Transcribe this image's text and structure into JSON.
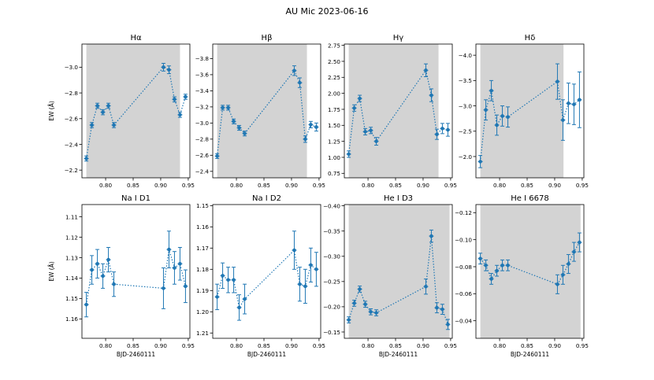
{
  "figure": {
    "suptitle": "AU Mic 2023-06-16"
  },
  "colors": {
    "series": "#1f77b4",
    "shade": "#d3d3d3",
    "axis": "#000000"
  },
  "x_times": [
    0.765,
    0.775,
    0.785,
    0.795,
    0.805,
    0.815,
    0.905,
    0.915,
    0.925,
    0.935,
    0.945
  ],
  "chart_data": [
    {
      "type": "scatter",
      "title": "Hα",
      "xlabel": "",
      "ylabel": "EW (Å)",
      "xlim": [
        0.757,
        0.953
      ],
      "ylim": [
        -3.18,
        -2.14
      ],
      "y_inverted": true,
      "shade": [
        0.765,
        0.935
      ],
      "yticks": [
        -3.0,
        -2.8,
        -2.6,
        -2.4,
        -2.2
      ],
      "yticklabels": [
        "−3.0",
        "−2.8",
        "−2.6",
        "−2.4",
        "−2.2"
      ],
      "xticks": [
        0.8,
        0.85,
        0.9,
        0.95
      ],
      "xticklabels": [
        "0.80",
        "0.85",
        "0.90",
        "0.95"
      ],
      "x": [
        0.765,
        0.775,
        0.785,
        0.795,
        0.805,
        0.815,
        0.905,
        0.915,
        0.925,
        0.935,
        0.945
      ],
      "y": [
        -2.29,
        -2.55,
        -2.7,
        -2.65,
        -2.7,
        -2.55,
        -3.0,
        -2.98,
        -2.75,
        -2.63,
        -2.77
      ],
      "yerr": [
        0.02,
        0.02,
        0.02,
        0.02,
        0.02,
        0.02,
        0.03,
        0.03,
        0.02,
        0.02,
        0.02
      ]
    },
    {
      "type": "scatter",
      "title": "Hβ",
      "xlabel": "",
      "ylabel": "",
      "xlim": [
        0.757,
        0.953
      ],
      "ylim": [
        -3.98,
        -2.32
      ],
      "y_inverted": true,
      "shade": [
        0.765,
        0.928
      ],
      "yticks": [
        -3.8,
        -3.6,
        -3.4,
        -3.2,
        -3.0,
        -2.8,
        -2.6,
        -2.4
      ],
      "yticklabels": [
        "−3.8",
        "−3.6",
        "−3.4",
        "−3.2",
        "−3.0",
        "−2.8",
        "−2.6",
        "−2.4"
      ],
      "xticks": [
        0.8,
        0.85,
        0.9,
        0.95
      ],
      "xticklabels": [
        "0.80",
        "0.85",
        "0.90",
        "0.95"
      ],
      "x": [
        0.765,
        0.775,
        0.785,
        0.795,
        0.805,
        0.815,
        0.905,
        0.915,
        0.925,
        0.935,
        0.945
      ],
      "y": [
        -2.59,
        -3.19,
        -3.19,
        -3.02,
        -2.94,
        -2.87,
        -3.65,
        -3.5,
        -2.8,
        -2.98,
        -2.95
      ],
      "yerr": [
        0.03,
        0.03,
        0.03,
        0.03,
        0.03,
        0.03,
        0.06,
        0.06,
        0.04,
        0.04,
        0.05
      ]
    },
    {
      "type": "scatter",
      "title": "Hγ",
      "xlabel": "",
      "ylabel": "",
      "xlim": [
        0.757,
        0.953
      ],
      "ylim": [
        0.68,
        2.77
      ],
      "y_inverted": false,
      "shade": [
        0.765,
        0.928
      ],
      "yticks": [
        0.75,
        1.0,
        1.25,
        1.5,
        1.75,
        2.0,
        2.25,
        2.5,
        2.75
      ],
      "yticklabels": [
        "0.75",
        "1.00",
        "1.25",
        "1.50",
        "1.75",
        "2.00",
        "2.25",
        "2.50",
        "2.75"
      ],
      "xticks": [
        0.8,
        0.85,
        0.9,
        0.95
      ],
      "xticklabels": [
        "0.80",
        "0.85",
        "0.90",
        "0.95"
      ],
      "x": [
        0.765,
        0.775,
        0.785,
        0.795,
        0.805,
        0.815,
        0.905,
        0.915,
        0.925,
        0.935,
        0.945
      ],
      "y": [
        1.05,
        1.77,
        1.92,
        1.4,
        1.42,
        1.25,
        2.36,
        1.97,
        1.36,
        1.45,
        1.43
      ],
      "yerr": [
        0.05,
        0.05,
        0.05,
        0.05,
        0.05,
        0.06,
        0.1,
        0.1,
        0.08,
        0.08,
        0.1
      ]
    },
    {
      "type": "scatter",
      "title": "Hδ",
      "xlabel": "",
      "ylabel": "",
      "xlim": [
        0.757,
        0.953
      ],
      "ylim": [
        -4.22,
        -1.58
      ],
      "y_inverted": true,
      "shade": [
        0.765,
        0.916
      ],
      "yticks": [
        -4.0,
        -3.5,
        -3.0,
        -2.5,
        -2.0
      ],
      "yticklabels": [
        "−4.0",
        "−3.5",
        "−3.0",
        "−2.5",
        "−2.0"
      ],
      "xticks": [
        0.8,
        0.85,
        0.9,
        0.95
      ],
      "xticklabels": [
        "0.80",
        "0.85",
        "0.90",
        "0.95"
      ],
      "x": [
        0.765,
        0.775,
        0.785,
        0.795,
        0.805,
        0.815,
        0.905,
        0.915,
        0.925,
        0.935,
        0.945
      ],
      "y": [
        -1.9,
        -2.92,
        -3.3,
        -2.62,
        -2.8,
        -2.78,
        -3.48,
        -2.72,
        -3.05,
        -3.03,
        -3.12
      ],
      "yerr": [
        0.12,
        0.2,
        0.2,
        0.2,
        0.2,
        0.2,
        0.35,
        0.4,
        0.4,
        0.4,
        0.55
      ]
    },
    {
      "type": "scatter",
      "title": "Na I D1",
      "xlabel": "BJD-2460111",
      "ylabel": "EW (Å)",
      "xlim": [
        0.757,
        0.953
      ],
      "ylim": [
        1.104,
        1.1695
      ],
      "y_inverted": true,
      "shade": null,
      "yticks": [
        1.11,
        1.12,
        1.13,
        1.14,
        1.15,
        1.16
      ],
      "yticklabels": [
        "1.11",
        "1.12",
        "1.13",
        "1.14",
        "1.15",
        "1.16"
      ],
      "xticks": [
        0.8,
        0.85,
        0.9,
        0.95
      ],
      "xticklabels": [
        "0.80",
        "0.85",
        "0.90",
        "0.95"
      ],
      "x": [
        0.765,
        0.775,
        0.785,
        0.795,
        0.805,
        0.815,
        0.905,
        0.915,
        0.925,
        0.935,
        0.945
      ],
      "y": [
        1.153,
        1.136,
        1.133,
        1.139,
        1.131,
        1.143,
        1.145,
        1.126,
        1.135,
        1.133,
        1.144
      ],
      "yerr": [
        0.006,
        0.007,
        0.007,
        0.006,
        0.006,
        0.006,
        0.01,
        0.009,
        0.008,
        0.008,
        0.008
      ]
    },
    {
      "type": "scatter",
      "title": "Na I D2",
      "xlabel": "BJD-2460111",
      "ylabel": "",
      "xlim": [
        0.757,
        0.953
      ],
      "ylim": [
        1.1495,
        1.2125
      ],
      "y_inverted": true,
      "shade": null,
      "yticks": [
        1.15,
        1.16,
        1.17,
        1.18,
        1.19,
        1.2,
        1.21
      ],
      "yticklabels": [
        "1.15",
        "1.16",
        "1.17",
        "1.18",
        "1.19",
        "1.20",
        "1.21"
      ],
      "xticks": [
        0.8,
        0.85,
        0.9,
        0.95
      ],
      "xticklabels": [
        "0.80",
        "0.85",
        "0.90",
        "0.95"
      ],
      "x": [
        0.765,
        0.775,
        0.785,
        0.795,
        0.805,
        0.815,
        0.905,
        0.915,
        0.925,
        0.935,
        0.945
      ],
      "y": [
        1.193,
        1.183,
        1.185,
        1.185,
        1.198,
        1.194,
        1.171,
        1.187,
        1.188,
        1.178,
        1.18
      ],
      "yerr": [
        0.006,
        0.006,
        0.006,
        0.006,
        0.006,
        0.007,
        0.009,
        0.008,
        0.008,
        0.008,
        0.008
      ]
    },
    {
      "type": "scatter",
      "title": "He I D3",
      "xlabel": "BJD-2460111",
      "ylabel": "",
      "xlim": [
        0.757,
        0.953
      ],
      "ylim": [
        -0.4025,
        -0.1375
      ],
      "y_inverted": true,
      "shade": [
        0.765,
        0.948
      ],
      "yticks": [
        -0.4,
        -0.35,
        -0.3,
        -0.25,
        -0.2,
        -0.15
      ],
      "yticklabels": [
        "−0.40",
        "−0.35",
        "−0.30",
        "−0.25",
        "−0.20",
        "−0.15"
      ],
      "xticks": [
        0.8,
        0.85,
        0.9,
        0.95
      ],
      "xticklabels": [
        "0.80",
        "0.85",
        "0.90",
        "0.95"
      ],
      "x": [
        0.765,
        0.775,
        0.785,
        0.795,
        0.805,
        0.815,
        0.905,
        0.915,
        0.925,
        0.935,
        0.945
      ],
      "y": [
        -0.174,
        -0.207,
        -0.235,
        -0.205,
        -0.19,
        -0.188,
        -0.24,
        -0.34,
        -0.198,
        -0.195,
        -0.165
      ],
      "yerr": [
        0.006,
        0.006,
        0.006,
        0.006,
        0.006,
        0.006,
        0.015,
        0.012,
        0.01,
        0.01,
        0.01
      ]
    },
    {
      "type": "scatter",
      "title": "He I 6678",
      "xlabel": "BJD-2460111",
      "ylabel": "",
      "xlim": [
        0.757,
        0.953
      ],
      "ylim": [
        -0.027,
        -0.126
      ],
      "y_inverted": false,
      "shade": [
        0.765,
        0.947
      ],
      "yticks": [
        -0.04,
        -0.06,
        -0.08,
        -0.1,
        -0.12
      ],
      "yticklabels": [
        "−0.04",
        "−0.06",
        "−0.08",
        "−0.10",
        "−0.12"
      ],
      "xticks": [
        0.8,
        0.85,
        0.9,
        0.95
      ],
      "xticklabels": [
        "0.80",
        "0.85",
        "0.90",
        "0.95"
      ],
      "x": [
        0.765,
        0.775,
        0.785,
        0.795,
        0.805,
        0.815,
        0.905,
        0.915,
        0.925,
        0.935,
        0.945
      ],
      "y": [
        -0.086,
        -0.081,
        -0.071,
        -0.077,
        -0.081,
        -0.081,
        -0.067,
        -0.074,
        -0.082,
        -0.091,
        -0.098
      ],
      "yerr": [
        0.004,
        0.004,
        0.004,
        0.004,
        0.004,
        0.004,
        0.007,
        0.007,
        0.007,
        0.007,
        0.007
      ]
    }
  ]
}
